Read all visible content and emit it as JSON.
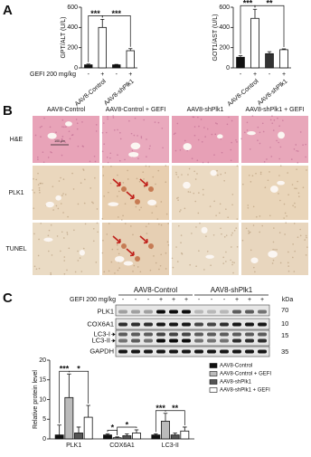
{
  "panels": [
    "A",
    "B",
    "C"
  ],
  "chart_data": [
    {
      "type": "bar",
      "ylabel": "GPT/ALT (U/L)",
      "xlabel": "GEFI 200 mg/kg",
      "categories": [
        "-",
        "+",
        "-",
        "+"
      ],
      "groups": [
        "AAV8-Control",
        "AAV8-shPlk1"
      ],
      "values": [
        30,
        400,
        30,
        170
      ],
      "errors": [
        8,
        80,
        5,
        20
      ],
      "colors": [
        "#111111",
        "#ffffff",
        "#111111",
        "#ffffff"
      ],
      "ylim": [
        0,
        600
      ],
      "yticks": [
        0,
        200,
        400,
        600
      ],
      "annotations": [
        "***",
        "***"
      ]
    },
    {
      "type": "bar",
      "ylabel": "GOT1/AST (U/L)",
      "categories": [
        "-",
        "+",
        "-",
        "+"
      ],
      "groups": [
        "AAV8-Control",
        "AAV8-shPlk1"
      ],
      "values": [
        105,
        490,
        140,
        180
      ],
      "errors": [
        15,
        90,
        20,
        8
      ],
      "colors": [
        "#111111",
        "#ffffff",
        "#333333",
        "#ffffff"
      ],
      "ylim": [
        0,
        600
      ],
      "yticks": [
        0,
        200,
        400,
        600
      ],
      "annotations": [
        "***",
        "**"
      ]
    },
    {
      "type": "bar",
      "ylabel": "Relative protein level",
      "categories": [
        "PLK1",
        "COX6A1",
        "LC3-II"
      ],
      "series": [
        {
          "name": "AAV8-Control",
          "color": "#111111",
          "values": [
            1,
            1,
            1
          ],
          "errors": [
            2.5,
            0.3,
            0.3
          ]
        },
        {
          "name": "AAV8-Control + GEFI",
          "color": "#bbbbbb",
          "values": [
            10.5,
            0.3,
            4.5
          ],
          "errors": [
            6,
            0.2,
            2
          ]
        },
        {
          "name": "AAV8-shPlk1",
          "color": "#555555",
          "values": [
            1.5,
            0.8,
            1
          ],
          "errors": [
            1.5,
            0.5,
            0.5
          ]
        },
        {
          "name": "AAV8-shPlk1 + GEFI",
          "color": "#ffffff",
          "values": [
            5.5,
            1.5,
            2
          ],
          "errors": [
            3,
            0.8,
            1
          ]
        }
      ],
      "ylim": [
        0,
        20
      ],
      "yticks": [
        0,
        5,
        10,
        15,
        20
      ],
      "annotations": [
        "***",
        "*",
        "*",
        "*",
        "***",
        "**"
      ],
      "legend": "right"
    }
  ],
  "histology": {
    "columns": [
      "AAV8-Control",
      "AAV8-Control + GEFI",
      "AAV8-shPlk1",
      "AAV8-shPlk1 + GEFI"
    ],
    "rows": [
      "H&E",
      "PLK1",
      "TUNEL"
    ],
    "scale_bar": "100 µm"
  },
  "blot": {
    "treatment": "GEFI 200 mg/kg",
    "groups": [
      "AAV8-Control",
      "AAV8-shPlk1"
    ],
    "lanes": [
      "-",
      "-",
      "-",
      "+",
      "+",
      "+",
      "-",
      "-",
      "-",
      "+",
      "+",
      "+"
    ],
    "proteins": [
      "PLK1",
      "COX6A1",
      "LC3-I",
      "LC3-II",
      "GAPDH"
    ],
    "kda_label": "kDa",
    "kda": [
      70,
      10,
      15,
      35
    ]
  }
}
